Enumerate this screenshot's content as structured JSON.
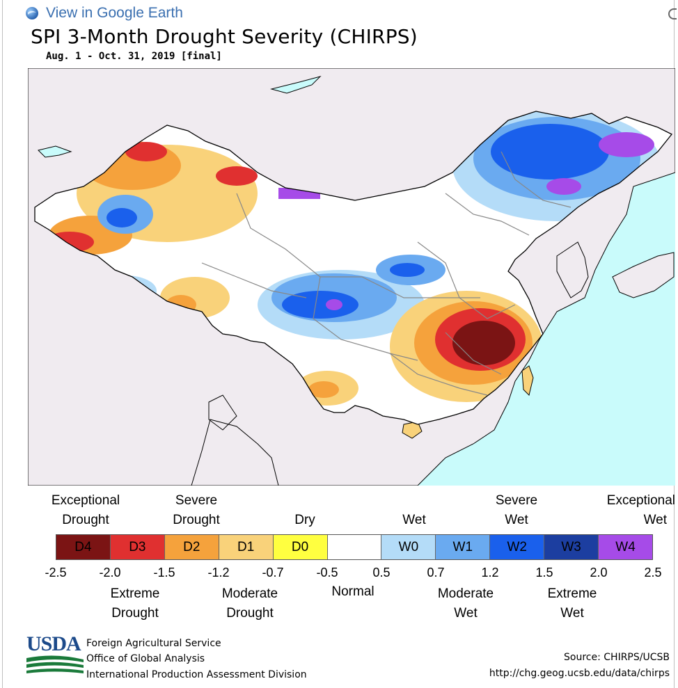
{
  "header": {
    "link_text": "View in Google Earth"
  },
  "map": {
    "title": "SPI 3-Month Drought Severity (CHIRPS)",
    "subtitle": "Aug. 1 - Oct. 31, 2019 [final]",
    "colors": {
      "ocean": "#c9fbfb",
      "land_outside": "#f0ebf0",
      "country_border": "#000000",
      "province_border": "#888888"
    }
  },
  "legend": {
    "top_labels": [
      {
        "line1": "Exceptional",
        "line2": "Drought"
      },
      {
        "line1": "Severe",
        "line2": "Drought"
      },
      {
        "line1": "",
        "line2": "Dry"
      },
      {
        "line1": "",
        "line2": "Wet"
      },
      {
        "line1": "Severe",
        "line2": "Wet"
      },
      {
        "line1": "Exceptional",
        "line2": "Wet"
      }
    ],
    "categories": [
      {
        "code": "D4",
        "color": "#7b1414"
      },
      {
        "code": "D3",
        "color": "#e03030"
      },
      {
        "code": "D2",
        "color": "#f5a23c"
      },
      {
        "code": "D1",
        "color": "#f9d27a"
      },
      {
        "code": "D0",
        "color": "#ffff40"
      },
      {
        "code": "",
        "color": "#ffffff"
      },
      {
        "code": "W0",
        "color": "#b4dcf8"
      },
      {
        "code": "W1",
        "color": "#6aaaf0"
      },
      {
        "code": "W2",
        "color": "#1a60ec"
      },
      {
        "code": "W3",
        "color": "#1c3ea0"
      },
      {
        "code": "W4",
        "color": "#a64be8"
      }
    ],
    "ticks": [
      "-2.5",
      "-2.0",
      "-1.5",
      "-1.2",
      "-0.7",
      "-0.5",
      "0.5",
      "0.7",
      "1.2",
      "1.5",
      "2.0",
      "2.5"
    ],
    "bottom_labels": [
      {
        "line1": "Extreme",
        "line2": "Drought"
      },
      {
        "line1": "Moderate",
        "line2": "Drought"
      },
      {
        "line1": "Normal",
        "line2": ""
      },
      {
        "line1": "Moderate",
        "line2": "Wet"
      },
      {
        "line1": "Extreme",
        "line2": "Wet"
      }
    ]
  },
  "footer": {
    "logo_text": "USDA",
    "agency_lines": [
      "Foreign Agricultural Service",
      "Office of Global Analysis",
      "International Production Assessment Division"
    ],
    "source": "Source: CHIRPS/UCSB",
    "url": "http://chg.geog.ucsb.edu/data/chirps"
  }
}
